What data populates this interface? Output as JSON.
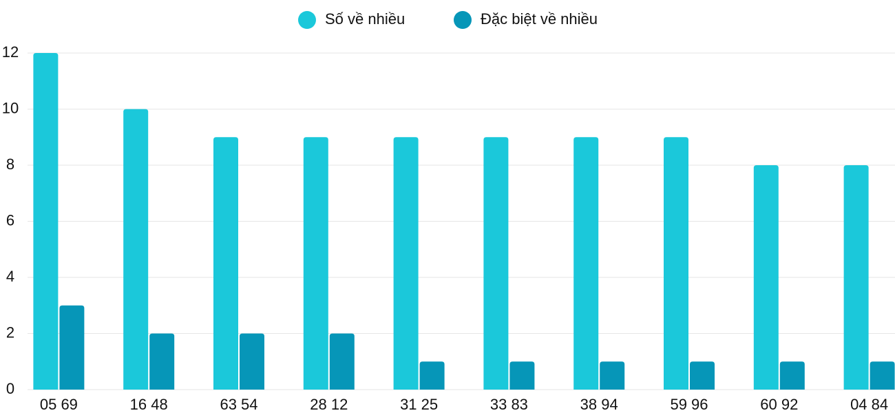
{
  "chart_data": {
    "type": "bar",
    "categories": [
      "05 69",
      "16 48",
      "63 54",
      "28 12",
      "31 25",
      "33 83",
      "38 94",
      "59 96",
      "60 92",
      "04 84"
    ],
    "series": [
      {
        "name": "Số về nhiều",
        "color": "#1bc8da",
        "values": [
          12,
          10,
          9,
          9,
          9,
          9,
          9,
          9,
          8,
          8
        ]
      },
      {
        "name": "Đặc biệt về nhiều",
        "color": "#0696b8",
        "values": [
          3,
          2,
          2,
          2,
          1,
          1,
          1,
          1,
          1,
          1
        ]
      }
    ],
    "ylim": [
      0,
      12
    ],
    "yticks": [
      0,
      2,
      4,
      6,
      8,
      10,
      12
    ],
    "grid": true,
    "legend": "top"
  }
}
